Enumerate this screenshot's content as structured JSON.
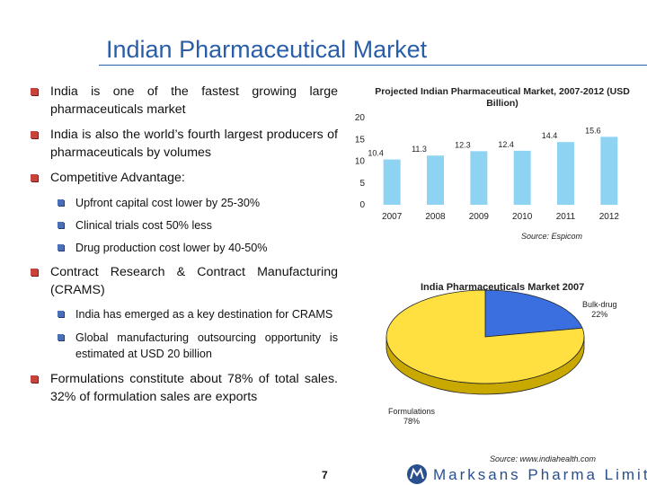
{
  "slide": {
    "title": "Indian Pharmaceutical Market",
    "page_number": "7",
    "logo_text": "Marksans Pharma Limited"
  },
  "bullets": [
    {
      "level": 1,
      "text": "India is one of the fastest growing large pharmaceuticals market"
    },
    {
      "level": 1,
      "text": "India is also the world’s fourth largest producers of pharmaceuticals by volumes"
    },
    {
      "level": 1,
      "text": "Competitive Advantage:"
    },
    {
      "level": 2,
      "text": "Upfront capital cost lower by 25-30%"
    },
    {
      "level": 2,
      "text": "Clinical trials cost 50% less"
    },
    {
      "level": 2,
      "text": "Drug production cost lower by 40-50%"
    },
    {
      "level": 1,
      "text": "Contract Research & Contract Manufacturing (CRAMS)"
    },
    {
      "level": 2,
      "text": "India has emerged as a key destination for CRAMS"
    },
    {
      "level": 2,
      "text": "Global manufacturing outsourcing opportunity is estimated at USD 20 billion"
    },
    {
      "level": 1,
      "text": "Formulations constitute about 78% of total sales. 32% of formulation sales are exports"
    }
  ],
  "chart_data": [
    {
      "type": "bar",
      "title": "Projected Indian Pharmaceutical Market, 2007-2012 (USD Billion)",
      "categories": [
        "2007",
        "2008",
        "2009",
        "2010",
        "2011",
        "2012"
      ],
      "values": [
        10.4,
        11.3,
        12.3,
        12.4,
        14.4,
        15.6
      ],
      "data_labels": [
        "10.4",
        "11.3",
        "12.3",
        "12.4",
        "14.4",
        "15.6"
      ],
      "yticks": [
        "0",
        "5",
        "10",
        "15",
        "20"
      ],
      "ylim": [
        0,
        20
      ],
      "grid": false,
      "bar_color": "#8fd3f2",
      "source": "Source: Espicom"
    },
    {
      "type": "pie",
      "title": "India Pharmaceuticals Market 2007",
      "slices": [
        {
          "label": "Bulk-drug",
          "pct_label": "22%",
          "value": 22,
          "color": "#3b6fe0"
        },
        {
          "label": "Formulations",
          "pct_label": "78%",
          "value": 78,
          "color": "#ffe040"
        }
      ],
      "source": "Source: www.indiahealth.com"
    }
  ],
  "colors": {
    "title": "#2a5ea8",
    "bullet_level1": "#c8433b",
    "bullet_level2": "#4a6fb7"
  }
}
